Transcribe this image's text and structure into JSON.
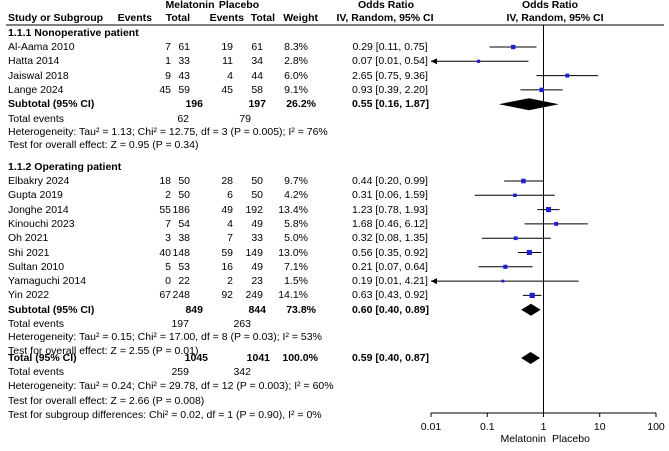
{
  "header": {
    "group1": "Melatonin",
    "group2": "Placebo",
    "or_title_left": "Odds Ratio",
    "or_title_right": "Odds Ratio",
    "col_study": "Study or Subgroup",
    "col_events1": "Events",
    "col_total1": "Total",
    "col_events2": "Events",
    "col_total2": "Total",
    "col_weight": "Weight",
    "col_method_left": "IV, Random, 95% CI",
    "col_method_right": "IV, Random, 95% CI"
  },
  "subgroups": [
    {
      "title": "1.1.1 Nonoperative patient",
      "studies": [
        {
          "name": "Al-Aama 2010",
          "e1": "7",
          "t1": "61",
          "e2": "19",
          "t2": "61",
          "weight": "8.3%",
          "ci": "0.29 [0.11, 0.75]"
        },
        {
          "name": "Hatta 2014",
          "e1": "1",
          "t1": "33",
          "e2": "11",
          "t2": "34",
          "weight": "2.8%",
          "ci": "0.07 [0.01, 0.54]"
        },
        {
          "name": "Jaiswal 2018",
          "e1": "9",
          "t1": "43",
          "e2": "4",
          "t2": "44",
          "weight": "6.0%",
          "ci": "2.65 [0.75, 9.36]"
        },
        {
          "name": "Lange 2024",
          "e1": "45",
          "t1": "59",
          "e2": "45",
          "t2": "58",
          "weight": "9.1%",
          "ci": "0.93 [0.39, 2.20]"
        }
      ],
      "subtotal": {
        "label": "Subtotal (95% CI)",
        "t1": "196",
        "t2": "197",
        "weight": "26.2%",
        "ci": "0.55 [0.16, 1.87]"
      },
      "total_events": {
        "label": "Total events",
        "e1": "62",
        "e2": "79"
      },
      "heterogeneity": "Heterogeneity: Tau² = 1.13; Chi² = 12.75, df = 3 (P = 0.005); I² = 76%",
      "overall": "Test for overall effect: Z = 0.95 (P = 0.34)"
    },
    {
      "title": "1.1.2 Operating patient",
      "studies": [
        {
          "name": "Elbakry 2024",
          "e1": "18",
          "t1": "50",
          "e2": "28",
          "t2": "50",
          "weight": "9.7%",
          "ci": "0.44 [0.20, 0.99]"
        },
        {
          "name": "Gupta 2019",
          "e1": "2",
          "t1": "50",
          "e2": "6",
          "t2": "50",
          "weight": "4.2%",
          "ci": "0.31 [0.06, 1.59]"
        },
        {
          "name": "Jonghe 2014",
          "e1": "55",
          "t1": "186",
          "e2": "49",
          "t2": "192",
          "weight": "13.4%",
          "ci": "1.23 [0.78, 1.93]"
        },
        {
          "name": "Kinouchi 2023",
          "e1": "7",
          "t1": "54",
          "e2": "4",
          "t2": "49",
          "weight": "5.8%",
          "ci": "1.68 [0.46, 6.12]"
        },
        {
          "name": "Oh 2021",
          "e1": "3",
          "t1": "38",
          "e2": "7",
          "t2": "33",
          "weight": "5.0%",
          "ci": "0.32 [0.08, 1.35]"
        },
        {
          "name": "Shi 2021",
          "e1": "40",
          "t1": "148",
          "e2": "59",
          "t2": "149",
          "weight": "13.0%",
          "ci": "0.56 [0.35, 0.92]"
        },
        {
          "name": "Sultan 2010",
          "e1": "5",
          "t1": "53",
          "e2": "16",
          "t2": "49",
          "weight": "7.1%",
          "ci": "0.21 [0.07, 0.64]"
        },
        {
          "name": "Yamaguchi 2014",
          "e1": "0",
          "t1": "22",
          "e2": "2",
          "t2": "23",
          "weight": "1.5%",
          "ci": "0.19 [0.01, 4.21]"
        },
        {
          "name": "Yin 2022",
          "e1": "67",
          "t1": "248",
          "e2": "92",
          "t2": "249",
          "weight": "14.1%",
          "ci": "0.63 [0.43, 0.92]"
        }
      ],
      "subtotal": {
        "label": "Subtotal (95% CI)",
        "t1": "849",
        "t2": "844",
        "weight": "73.8%",
        "ci": "0.60 [0.40, 0.89]"
      },
      "total_events": {
        "label": "Total events",
        "e1": "197",
        "e2": "263"
      },
      "heterogeneity": "Heterogeneity: Tau² = 0.15; Chi² = 17.00, df = 8 (P = 0.03); I² = 53%",
      "overall": "Test for overall effect: Z = 2.55 (P = 0.01)"
    }
  ],
  "total": {
    "label": "Total (95% CI)",
    "t1": "1045",
    "t2": "1041",
    "weight": "100.0%",
    "ci": "0.59 [0.40, 0.87]",
    "events_label": "Total events",
    "e1": "259",
    "e2": "342",
    "heterogeneity": "Heterogeneity: Tau² = 0.24; Chi² = 29.78, df = 12 (P = 0.003); I² = 60%",
    "overall": "Test for overall effect: Z = 2.66 (P = 0.008)",
    "subgroup_diff": "Test for subgroup differences: Chi² = 0.02, df = 1 (P = 0.90), I² = 0%"
  },
  "axis": {
    "ticks": [
      0.01,
      0.1,
      1,
      10,
      100
    ],
    "tick_labels": [
      "0.01",
      "0.1",
      "1",
      "10",
      "100"
    ],
    "favours_left": "Melatonin",
    "favours_right": "Placebo"
  },
  "chart_data": {
    "type": "scatter",
    "x_scale": "log",
    "xlim": [
      0.01,
      100
    ],
    "reference_line": 1,
    "studies": [
      {
        "group": "1.1.1",
        "name": "Al-Aama 2010",
        "or": 0.29,
        "lo": 0.11,
        "hi": 0.75,
        "weight": 8.3
      },
      {
        "group": "1.1.1",
        "name": "Hatta 2014",
        "or": 0.07,
        "lo": 0.01,
        "hi": 0.54,
        "weight": 2.8
      },
      {
        "group": "1.1.1",
        "name": "Jaiswal 2018",
        "or": 2.65,
        "lo": 0.75,
        "hi": 9.36,
        "weight": 6.0
      },
      {
        "group": "1.1.1",
        "name": "Lange 2024",
        "or": 0.93,
        "lo": 0.39,
        "hi": 2.2,
        "weight": 9.1
      },
      {
        "group": "1.1.2",
        "name": "Elbakry 2024",
        "or": 0.44,
        "lo": 0.2,
        "hi": 0.99,
        "weight": 9.7
      },
      {
        "group": "1.1.2",
        "name": "Gupta 2019",
        "or": 0.31,
        "lo": 0.06,
        "hi": 1.59,
        "weight": 4.2
      },
      {
        "group": "1.1.2",
        "name": "Jonghe 2014",
        "or": 1.23,
        "lo": 0.78,
        "hi": 1.93,
        "weight": 13.4
      },
      {
        "group": "1.1.2",
        "name": "Kinouchi 2023",
        "or": 1.68,
        "lo": 0.46,
        "hi": 6.12,
        "weight": 5.8
      },
      {
        "group": "1.1.2",
        "name": "Oh 2021",
        "or": 0.32,
        "lo": 0.08,
        "hi": 1.35,
        "weight": 5.0
      },
      {
        "group": "1.1.2",
        "name": "Shi 2021",
        "or": 0.56,
        "lo": 0.35,
        "hi": 0.92,
        "weight": 13.0
      },
      {
        "group": "1.1.2",
        "name": "Sultan 2010",
        "or": 0.21,
        "lo": 0.07,
        "hi": 0.64,
        "weight": 7.1
      },
      {
        "group": "1.1.2",
        "name": "Yamaguchi 2014",
        "or": 0.19,
        "lo": 0.01,
        "hi": 4.21,
        "weight": 1.5
      },
      {
        "group": "1.1.2",
        "name": "Yin 2022",
        "or": 0.63,
        "lo": 0.43,
        "hi": 0.92,
        "weight": 14.1
      }
    ],
    "diamonds": [
      {
        "name": "Subtotal 1.1.1",
        "or": 0.55,
        "lo": 0.16,
        "hi": 1.87
      },
      {
        "name": "Subtotal 1.1.2",
        "or": 0.6,
        "lo": 0.4,
        "hi": 0.89
      },
      {
        "name": "Total",
        "or": 0.59,
        "lo": 0.4,
        "hi": 0.87
      }
    ],
    "marker_color": "#1f1fd0",
    "line_color": "#000000"
  }
}
